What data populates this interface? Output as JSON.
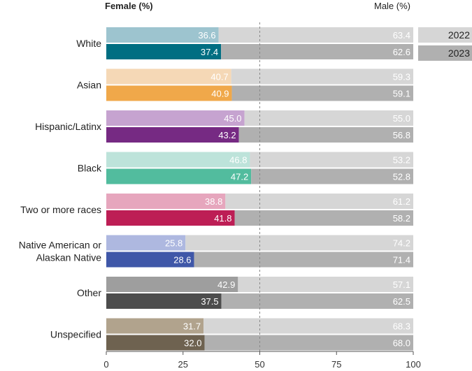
{
  "chart_data": {
    "type": "bar",
    "orientation": "horizontal",
    "stacked": true,
    "left_header": "Female (%)",
    "right_header": "Male (%)",
    "categories": [
      "White",
      "Asian",
      "Hispanic/Latinx",
      "Black",
      "Two or more races",
      "Native American or Alaskan Native",
      "Other",
      "Unspecified"
    ],
    "category_lines": [
      [
        "White"
      ],
      [
        "Asian"
      ],
      [
        "Hispanic/Latinx"
      ],
      [
        "Black"
      ],
      [
        "Two or more races"
      ],
      [
        "Native American or",
        "Alaskan Native"
      ],
      [
        "Other"
      ],
      [
        "Unspecified"
      ]
    ],
    "years": [
      "2022",
      "2023"
    ],
    "female": {
      "2022": [
        36.6,
        40.7,
        45.0,
        46.8,
        38.8,
        25.8,
        42.9,
        31.7
      ],
      "2023": [
        37.4,
        40.9,
        43.2,
        47.2,
        41.8,
        28.6,
        37.5,
        32.0
      ]
    },
    "male": {
      "2022": [
        63.4,
        59.3,
        55.0,
        53.2,
        61.2,
        74.2,
        57.1,
        68.3
      ],
      "2023": [
        62.6,
        59.1,
        56.8,
        52.8,
        58.2,
        71.4,
        62.5,
        68.0
      ]
    },
    "female_colors": {
      "2022": [
        "#9dc4cf",
        "#f5d8b6",
        "#c6a3d0",
        "#bde3da",
        "#e6a6bd",
        "#aeb8e0",
        "#9e9e9e",
        "#b1a38d"
      ],
      "2023": [
        "#006e82",
        "#f0a84a",
        "#762a83",
        "#52bc9e",
        "#bd1e55",
        "#3f57a8",
        "#4d4d4d",
        "#6e6250"
      ]
    },
    "male_colors": {
      "2022": "#d6d6d6",
      "2023": "#b0b0b0"
    },
    "xticks": [
      0,
      25,
      50,
      75,
      100
    ],
    "xlim": [
      0,
      100
    ],
    "reference_line": 50,
    "legend": [
      "2022",
      "2023"
    ],
    "legend_position": "top-right"
  }
}
